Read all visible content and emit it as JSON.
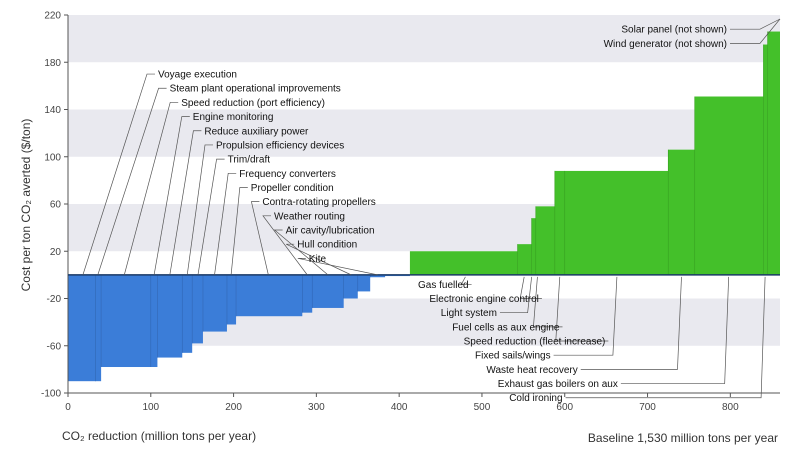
{
  "chart_data": {
    "type": "bar",
    "subtype": "marginal-abatement-cost-curve",
    "title": "",
    "xlabel": "CO₂ reduction (million tons per year)",
    "ylabel": "Cost per ton CO₂ averted ($/ton)",
    "xlim": [
      0,
      860
    ],
    "ylim": [
      -100,
      220
    ],
    "x_ticks": [
      "0",
      "100",
      "200",
      "300",
      "400",
      "500",
      "600",
      "700",
      "800"
    ],
    "y_ticks": [
      "-100",
      "-60",
      "-20",
      "20",
      "60",
      "100",
      "140",
      "180",
      "220"
    ],
    "grid": "horizontal bands",
    "note": "Baseline 1,530 million tons per year",
    "colors": {
      "negative": "#3b7dd8",
      "positive": "#44c02a",
      "band": "#e9e9ef"
    },
    "negative_series": {
      "name": "",
      "segments": [
        {
          "x0": 0,
          "x1": 33,
          "y": -90
        },
        {
          "x0": 33,
          "x1": 40,
          "y": -90
        },
        {
          "x0": 40,
          "x1": 100,
          "y": -78
        },
        {
          "x0": 100,
          "x1": 108,
          "y": -78
        },
        {
          "x0": 108,
          "x1": 138,
          "y": -70
        },
        {
          "x0": 138,
          "x1": 150,
          "y": -66
        },
        {
          "x0": 150,
          "x1": 163,
          "y": -58
        },
        {
          "x0": 163,
          "x1": 192,
          "y": -48
        },
        {
          "x0": 192,
          "x1": 203,
          "y": -42
        },
        {
          "x0": 203,
          "x1": 283,
          "y": -35
        },
        {
          "x0": 283,
          "x1": 295,
          "y": -32
        },
        {
          "x0": 295,
          "x1": 333,
          "y": -28
        },
        {
          "x0": 333,
          "x1": 350,
          "y": -20
        },
        {
          "x0": 350,
          "x1": 365,
          "y": -14
        },
        {
          "x0": 365,
          "x1": 383,
          "y": -2
        },
        {
          "x0": 383,
          "x1": 413,
          "y": -1
        }
      ]
    },
    "positive_series": {
      "name": "",
      "segments": [
        {
          "x0": 413,
          "x1": 543,
          "y": 20
        },
        {
          "x0": 543,
          "x1": 560,
          "y": 26
        },
        {
          "x0": 560,
          "x1": 565,
          "y": 48
        },
        {
          "x0": 565,
          "x1": 588,
          "y": 58
        },
        {
          "x0": 588,
          "x1": 600,
          "y": 88
        },
        {
          "x0": 600,
          "x1": 725,
          "y": 88
        },
        {
          "x0": 725,
          "x1": 757,
          "y": 106
        },
        {
          "x0": 757,
          "x1": 840,
          "y": 151
        },
        {
          "x0": 840,
          "x1": 845,
          "y": 195
        },
        {
          "x0": 845,
          "x1": 860,
          "y": 206
        }
      ]
    },
    "left_labels": [
      {
        "text": "Voyage execution",
        "y": 170,
        "target_x": 18
      },
      {
        "text": "Steam plant operational improvements",
        "y": 158,
        "target_x": 36
      },
      {
        "text": "Speed reduction (port efficiency)",
        "y": 146,
        "target_x": 68
      },
      {
        "text": "Engine monitoring",
        "y": 134,
        "target_x": 104
      },
      {
        "text": "Reduce auxiliary power",
        "y": 122,
        "target_x": 123
      },
      {
        "text": "Propulsion efficiency devices",
        "y": 110,
        "target_x": 144
      },
      {
        "text": "Trim/draft",
        "y": 98,
        "target_x": 157
      },
      {
        "text": "Frequency converters",
        "y": 86,
        "target_x": 177
      },
      {
        "text": "Propeller condition",
        "y": 74,
        "target_x": 197
      },
      {
        "text": "Contra-rotating propellers",
        "y": 62,
        "target_x": 242
      },
      {
        "text": "Weather routing",
        "y": 50,
        "target_x": 289
      },
      {
        "text": "Air cavity/lubrication",
        "y": 38,
        "target_x": 314
      },
      {
        "text": "Hull condition",
        "y": 26,
        "target_x": 342
      },
      {
        "text": "Kite",
        "y": 14,
        "target_x": 374
      }
    ],
    "right_labels": [
      {
        "text": "Gas fuelled",
        "y": -8,
        "target_x": 480
      },
      {
        "text": "Electronic engine control",
        "y": -20,
        "target_x": 551
      },
      {
        "text": "Light system",
        "y": -32,
        "target_x": 560
      },
      {
        "text": "Fuel cells as aux engine",
        "y": -44,
        "target_x": 567
      },
      {
        "text": "Speed reduction (fleet increase)",
        "y": -56,
        "target_x": 594
      },
      {
        "text": "Fixed sails/wings",
        "y": -68,
        "target_x": 663
      },
      {
        "text": "Waste heat recovery",
        "y": -80,
        "target_x": 741
      },
      {
        "text": "Exhaust gas boilers on aux",
        "y": -92,
        "target_x": 798
      },
      {
        "text": "Cold ironing",
        "y": -104,
        "target_x": 842
      }
    ],
    "top_labels": [
      {
        "text": "Solar panel (not shown)",
        "y": 208,
        "target_x": 860
      },
      {
        "text": "Wind generator (not shown)",
        "y": 196,
        "target_x": 860
      }
    ]
  }
}
